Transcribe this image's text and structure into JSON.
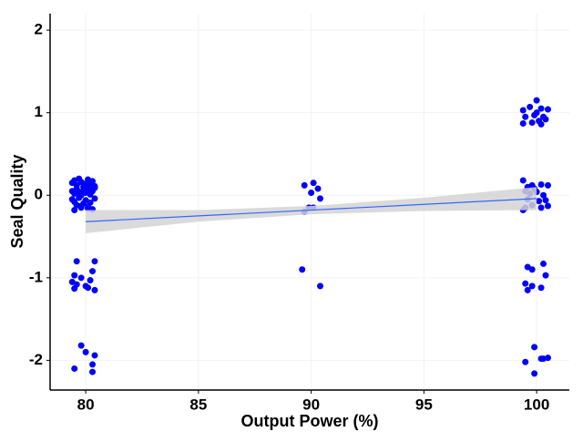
{
  "chart_data": {
    "type": "scatter",
    "x_label": "Output Power (%)",
    "y_label": "Seal Quality",
    "xlim": [
      78.42,
      101.45
    ],
    "ylim": [
      -2.36,
      2.2
    ],
    "xticks": [
      80,
      85,
      90,
      95,
      100
    ],
    "yticks": [
      -2,
      -1,
      0,
      1,
      2
    ],
    "grid": true,
    "color": "#0000ff",
    "x": [
      79.4,
      79.5,
      79.6,
      79.7,
      79.8,
      79.9,
      80.0,
      80.1,
      80.2,
      80.3,
      80.4,
      79.4,
      79.5,
      79.6,
      79.7,
      79.8,
      79.9,
      80.0,
      80.1,
      80.2,
      80.3,
      80.4,
      79.4,
      79.5,
      79.6,
      79.7,
      79.8,
      79.9,
      80.0,
      80.1,
      80.2,
      80.3,
      80.4,
      79.5,
      79.8,
      80.1,
      79.6,
      80.4,
      79.5,
      79.8,
      80.3,
      79.4,
      79.6,
      80.0,
      79.5,
      80.1,
      80.4,
      80.2,
      79.8,
      80.0,
      80.4,
      80.3,
      79.5,
      80.3,
      89.7,
      90.1,
      90.3,
      90.0,
      90.4,
      89.9,
      90.1,
      89.7,
      89.6,
      90.4,
      99.4,
      100.0,
      99.7,
      100.2,
      100.5,
      99.5,
      99.9,
      100.3,
      99.8,
      100.1,
      99.4,
      100.4,
      100.0,
      100.2,
      99.4,
      99.8,
      100.2,
      100.5,
      99.5,
      99.7,
      100.0,
      100.3,
      99.6,
      100.1,
      100.4,
      99.5,
      99.8,
      100.2,
      100.5,
      99.4,
      99.9,
      99.6,
      99.6,
      100.3,
      99.8,
      100.4,
      99.5,
      100.2,
      99.6,
      99.8,
      99.9,
      100.2,
      100.5,
      100.3,
      99.5,
      99.9
    ],
    "y": [
      0.15,
      0.18,
      0.12,
      0.2,
      0.16,
      0.1,
      0.14,
      0.19,
      0.12,
      0.17,
      0.11,
      0.05,
      0.02,
      0.08,
      0.04,
      0.0,
      0.06,
      0.03,
      0.07,
      0.01,
      0.05,
      0.09,
      -0.05,
      -0.08,
      -0.12,
      -0.03,
      -0.15,
      -0.1,
      -0.06,
      -0.14,
      -0.09,
      -0.17,
      -0.04,
      -0.18,
      -0.13,
      -0.16,
      -0.8,
      -0.8,
      -0.97,
      -1.0,
      -0.92,
      -1.05,
      -1.08,
      -1.1,
      -1.13,
      -1.12,
      -1.15,
      -1.03,
      -1.82,
      -1.9,
      -1.94,
      -2.05,
      -2.1,
      -2.14,
      0.12,
      0.15,
      0.08,
      0.03,
      -0.04,
      -0.15,
      -0.15,
      -0.2,
      -0.9,
      -1.1,
      1.03,
      1.15,
      1.07,
      1.05,
      1.04,
      0.95,
      0.97,
      0.95,
      0.88,
      0.9,
      0.87,
      0.92,
      1.0,
      0.86,
      0.18,
      0.12,
      0.13,
      0.12,
      0.05,
      0.02,
      0.04,
      0.0,
      -0.05,
      -0.07,
      -0.06,
      -0.15,
      -0.12,
      -0.15,
      -0.13,
      -0.18,
      0.08,
      0.1,
      -0.87,
      -0.83,
      -0.9,
      -0.97,
      -1.07,
      -1.12,
      -1.15,
      -1.1,
      -1.84,
      -1.98,
      -1.97,
      -1.98,
      -2.02,
      -2.16
    ],
    "fit": {
      "color": "#3366ff",
      "band_color": "#d3d3d3",
      "x": [
        80,
        85,
        90,
        95,
        100
      ],
      "y": [
        -0.32,
        -0.25,
        -0.18,
        -0.11,
        -0.04
      ],
      "lower": [
        -0.46,
        -0.32,
        -0.23,
        -0.19,
        -0.18
      ],
      "upper": [
        -0.18,
        -0.18,
        -0.13,
        -0.03,
        0.1
      ]
    }
  }
}
